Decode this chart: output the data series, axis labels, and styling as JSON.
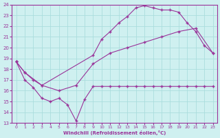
{
  "xlabel": "Windchill (Refroidissement éolien,°C)",
  "xlim": [
    -0.5,
    23.5
  ],
  "ylim": [
    13,
    24
  ],
  "yticks": [
    13,
    14,
    15,
    16,
    17,
    18,
    19,
    20,
    21,
    22,
    23,
    24
  ],
  "xticks": [
    0,
    1,
    2,
    3,
    4,
    5,
    6,
    7,
    8,
    9,
    10,
    11,
    12,
    13,
    14,
    15,
    16,
    17,
    18,
    19,
    20,
    21,
    22,
    23
  ],
  "bg_color": "#cff0f0",
  "line_color": "#993399",
  "grid_color": "#aadddd",
  "line1_x": [
    0,
    1,
    2,
    3,
    9,
    10,
    11,
    12,
    13,
    14,
    15,
    16,
    17,
    18,
    19,
    20,
    21,
    22,
    23
  ],
  "line1_y": [
    18.7,
    17.7,
    17.0,
    16.5,
    19.3,
    20.8,
    21.5,
    22.3,
    22.9,
    23.7,
    23.9,
    23.7,
    23.5,
    23.5,
    23.3,
    22.3,
    21.5,
    20.2,
    19.5
  ],
  "line2_x": [
    0,
    1,
    2,
    3,
    4,
    5,
    6,
    7,
    8,
    9,
    10,
    11,
    12,
    13,
    14,
    15,
    16,
    17,
    18,
    19,
    20,
    21,
    22,
    23
  ],
  "line2_y": [
    18.7,
    17.0,
    16.3,
    15.3,
    15.0,
    15.3,
    14.7,
    13.2,
    15.2,
    16.4,
    16.4,
    16.4,
    16.4,
    16.4,
    16.4,
    16.4,
    16.4,
    16.4,
    16.4,
    16.4,
    16.4,
    16.4,
    16.4,
    16.4
  ],
  "line3_x": [
    0,
    1,
    3,
    5,
    7,
    9,
    11,
    13,
    15,
    17,
    19,
    21,
    23
  ],
  "line3_y": [
    18.7,
    17.7,
    16.5,
    16.0,
    16.5,
    18.5,
    19.5,
    20.0,
    20.5,
    21.0,
    21.5,
    21.8,
    19.5
  ]
}
